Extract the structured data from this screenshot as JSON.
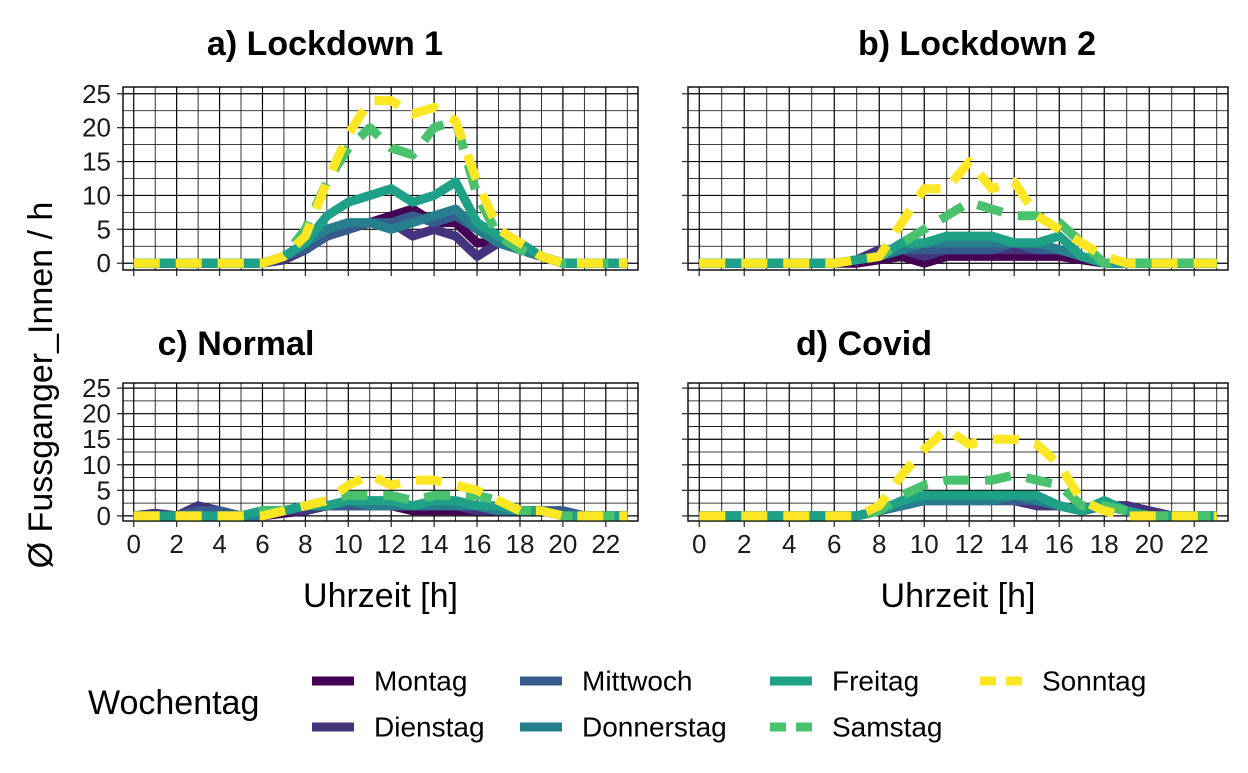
{
  "chart_data": {
    "type": "line",
    "ylabel": "Ø Fussganger_Innen / h",
    "xlabel": "Uhrzeit [h]",
    "x": [
      0,
      1,
      2,
      3,
      4,
      5,
      6,
      7,
      8,
      9,
      10,
      11,
      12,
      13,
      14,
      15,
      16,
      17,
      18,
      19,
      20,
      21,
      22,
      23
    ],
    "xticks": [
      0,
      2,
      4,
      6,
      8,
      10,
      12,
      14,
      16,
      18,
      20,
      22
    ],
    "yticks": [
      0,
      5,
      10,
      15,
      20,
      25
    ],
    "xlim": [
      -0.5,
      23.5
    ],
    "ylim": [
      -1,
      26
    ],
    "grid": true,
    "legend": {
      "title": "Wochentag",
      "placement": "bottom",
      "entries": [
        {
          "label": "Montag",
          "color": "#440154",
          "dash": "solid"
        },
        {
          "label": "Dienstag",
          "color": "#46337e",
          "dash": "solid"
        },
        {
          "label": "Mittwoch",
          "color": "#365c8d",
          "dash": "solid"
        },
        {
          "label": "Donnerstag",
          "color": "#277f8e",
          "dash": "solid"
        },
        {
          "label": "Freitag",
          "color": "#1fa187",
          "dash": "solid"
        },
        {
          "label": "Samstag",
          "color": "#4ac16d",
          "dash": "dashed"
        },
        {
          "label": "Sonntag",
          "color": "#fde725",
          "dash": "dashed"
        }
      ]
    },
    "panels": [
      {
        "title": "a) Lockdown 1",
        "series": [
          {
            "name": "Montag",
            "values": [
              0,
              0,
              0,
              0,
              0,
              0,
              0,
              0.5,
              2,
              4,
              5,
              6,
              7,
              8,
              6,
              6,
              3,
              3,
              2,
              1,
              0,
              0,
              0,
              0
            ]
          },
          {
            "name": "Dienstag",
            "values": [
              0,
              0,
              0,
              0,
              0,
              0,
              0,
              0.5,
              2,
              4,
              5,
              6,
              6,
              4,
              5,
              4,
              1,
              3,
              2,
              1,
              0,
              0,
              0,
              0
            ]
          },
          {
            "name": "Mittwoch",
            "values": [
              0,
              0,
              0,
              0,
              0,
              0,
              0,
              1,
              2,
              4,
              5,
              6,
              6,
              7,
              6,
              7,
              5,
              3,
              2,
              1,
              0,
              0,
              0,
              0
            ]
          },
          {
            "name": "Donnerstag",
            "values": [
              0,
              0,
              0,
              0,
              0,
              0,
              0,
              1,
              3,
              5,
              6,
              6,
              5,
              6,
              7,
              8,
              5,
              3,
              2,
              1,
              0,
              0,
              0,
              0
            ]
          },
          {
            "name": "Freitag",
            "values": [
              0,
              0,
              0,
              0,
              0,
              0,
              0,
              1,
              3,
              7,
              9,
              10,
              11,
              9,
              10,
              12,
              6,
              4,
              3,
              1,
              0,
              0,
              0,
              0
            ]
          },
          {
            "name": "Samstag",
            "values": [
              0,
              0,
              0,
              0,
              0,
              0,
              0,
              1,
              5,
              12,
              17,
              20,
              17,
              16,
              20,
              21,
              10,
              4,
              2,
              1,
              0,
              0,
              0,
              0
            ]
          },
          {
            "name": "Sonntag",
            "values": [
              0,
              0,
              0,
              0,
              0,
              0,
              0,
              1,
              4,
              12,
              19,
              24,
              24,
              22,
              23,
              21,
              12,
              5,
              3,
              1,
              0,
              0,
              0,
              0
            ]
          }
        ]
      },
      {
        "title": "b) Lockdown 2",
        "series": [
          {
            "name": "Montag",
            "values": [
              0,
              0,
              0,
              0,
              0,
              0,
              0,
              0,
              0.5,
              1,
              0,
              1,
              1,
              1,
              1,
              1,
              1,
              0.5,
              0,
              0,
              0,
              0,
              0,
              0
            ]
          },
          {
            "name": "Dienstag",
            "values": [
              0,
              0,
              0,
              0,
              0,
              0,
              0,
              0.5,
              2,
              2,
              1,
              2,
              2,
              2,
              2,
              2,
              2,
              1,
              0,
              0,
              0,
              0,
              0,
              0
            ]
          },
          {
            "name": "Mittwoch",
            "values": [
              0,
              0,
              0,
              0,
              0,
              0,
              0,
              0.5,
              1,
              2,
              2,
              2,
              2,
              2,
              3,
              2,
              2,
              1,
              0,
              0,
              0,
              0,
              0,
              0
            ]
          },
          {
            "name": "Donnerstag",
            "values": [
              0,
              0,
              0,
              0,
              0,
              0,
              0,
              0.5,
              1,
              2,
              3,
              3,
              3,
              3,
              3,
              3,
              2,
              1,
              0,
              0,
              0,
              0,
              0,
              0
            ]
          },
          {
            "name": "Freitag",
            "values": [
              0,
              0,
              0,
              0,
              0,
              0,
              0,
              0.5,
              1,
              3,
              3,
              4,
              4,
              4,
              3,
              3,
              4,
              1,
              0,
              0,
              0,
              0,
              0,
              0
            ]
          },
          {
            "name": "Samstag",
            "values": [
              0,
              0,
              0,
              0,
              0,
              0,
              0,
              0.5,
              1,
              3,
              5,
              7,
              9,
              8,
              7,
              7,
              6,
              3,
              0,
              0,
              0,
              0,
              0,
              0
            ]
          },
          {
            "name": "Sonntag",
            "values": [
              0,
              0,
              0,
              0,
              0,
              0,
              0,
              0.5,
              1,
              6,
              11,
              11,
              15,
              11,
              12,
              7,
              5,
              3,
              1,
              0,
              0,
              0,
              0,
              0
            ]
          }
        ]
      },
      {
        "title": "c) Normal",
        "series": [
          {
            "name": "Montag",
            "values": [
              0,
              0.5,
              0,
              1,
              0,
              0,
              0,
              0.5,
              1,
              2,
              2,
              2,
              2,
              1,
              1,
              1,
              1,
              1,
              1,
              1,
              0,
              0,
              0,
              0
            ]
          },
          {
            "name": "Dienstag",
            "values": [
              0,
              0.5,
              0,
              2,
              1,
              0,
              1,
              1,
              1,
              2,
              2,
              2,
              2,
              2,
              2,
              2,
              1,
              1,
              1,
              1,
              1,
              0,
              0,
              0
            ]
          },
          {
            "name": "Mittwoch",
            "values": [
              0,
              0,
              0,
              1,
              1,
              0,
              1,
              1,
              2,
              2,
              2,
              2,
              2,
              2,
              2,
              2,
              2,
              1,
              1,
              1,
              1,
              0,
              0,
              0
            ]
          },
          {
            "name": "Donnerstag",
            "values": [
              0,
              0,
              0,
              0,
              0,
              0,
              0,
              1,
              2,
              2,
              3,
              2,
              2,
              2,
              2,
              2,
              2,
              1,
              1,
              1,
              0,
              0,
              0,
              0
            ]
          },
          {
            "name": "Freitag",
            "values": [
              0,
              0,
              0,
              0,
              0,
              0,
              1,
              1,
              2,
              2,
              3,
              3,
              3,
              2,
              3,
              3,
              2,
              2,
              1,
              1,
              0,
              0,
              0,
              0
            ]
          },
          {
            "name": "Samstag",
            "values": [
              0,
              0,
              0,
              0,
              0,
              0,
              1,
              1,
              2,
              3,
              4,
              4,
              4,
              3,
              4,
              4,
              4,
              3,
              1,
              1,
              0,
              0,
              0,
              0
            ]
          },
          {
            "name": "Sonntag",
            "values": [
              0,
              0,
              0,
              0,
              0,
              0,
              0,
              1,
              2,
              3,
              6,
              8,
              6,
              7,
              7,
              6,
              5,
              3,
              1,
              1,
              0,
              0,
              0,
              0
            ]
          }
        ]
      },
      {
        "title": "d) Covid",
        "series": [
          {
            "name": "Montag",
            "values": [
              0,
              0,
              0,
              0,
              0,
              0,
              0,
              0,
              1,
              2,
              3,
              3,
              3,
              3,
              3,
              2,
              2,
              1,
              2,
              2,
              1,
              0,
              0,
              0
            ]
          },
          {
            "name": "Dienstag",
            "values": [
              0,
              0,
              0,
              0,
              0,
              0,
              0,
              0,
              1,
              2,
              3,
              3,
              3,
              3,
              3,
              2,
              2,
              1,
              2,
              2,
              1,
              0,
              0,
              0
            ]
          },
          {
            "name": "Mittwoch",
            "values": [
              0,
              0,
              0,
              0,
              0,
              0,
              0,
              0,
              1,
              2,
              3,
              3,
              3,
              3,
              3,
              3,
              2,
              1,
              2,
              1,
              0,
              0,
              0,
              0
            ]
          },
          {
            "name": "Donnerstag",
            "values": [
              0,
              0,
              0,
              0,
              0,
              0,
              0,
              0,
              1,
              2,
              3,
              3,
              3,
              3,
              4,
              3,
              2,
              1,
              2,
              1,
              0,
              0,
              0,
              0
            ]
          },
          {
            "name": "Freitag",
            "values": [
              0,
              0,
              0,
              0,
              0,
              0,
              0,
              0,
              1,
              3,
              4,
              4,
              4,
              4,
              4,
              4,
              2,
              1,
              3,
              1,
              0,
              0,
              0,
              0
            ]
          },
          {
            "name": "Samstag",
            "values": [
              0,
              0,
              0,
              0,
              0,
              0,
              0,
              0,
              1,
              4,
              6,
              7,
              7,
              7,
              8,
              7,
              6,
              2,
              2,
              1,
              0,
              0,
              0,
              0
            ]
          },
          {
            "name": "Sonntag",
            "values": [
              0,
              0,
              0,
              0,
              0,
              0,
              0,
              0,
              2,
              8,
              13,
              17,
              14,
              15,
              15,
              14,
              10,
              3,
              1,
              0,
              0,
              0,
              0,
              0
            ]
          }
        ]
      }
    ]
  }
}
